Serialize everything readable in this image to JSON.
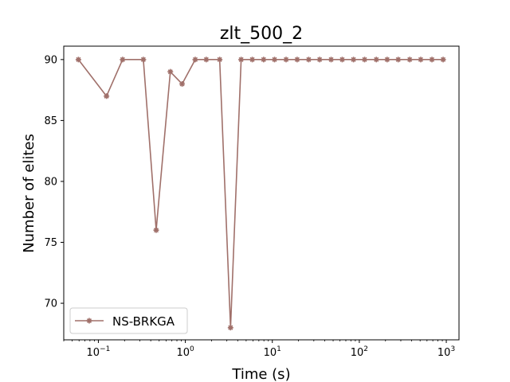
{
  "chart_data": {
    "type": "line",
    "title": "zlt_500_2",
    "xlabel": "Time (s)",
    "ylabel": "Number of elites",
    "xscale": "log",
    "xlim": [
      0.04,
      1400
    ],
    "ylim": [
      67,
      91.1
    ],
    "x_ticks": [
      0.1,
      1,
      10,
      100,
      1000
    ],
    "x_tick_labels": [
      {
        "base": "10",
        "exp": "−1"
      },
      {
        "base": "10",
        "exp": "0"
      },
      {
        "base": "10",
        "exp": "1"
      },
      {
        "base": "10",
        "exp": "2"
      },
      {
        "base": "10",
        "exp": "3"
      }
    ],
    "y_ticks": [
      70,
      75,
      80,
      85,
      90
    ],
    "y_tick_labels": [
      "70",
      "75",
      "80",
      "85",
      "90"
    ],
    "grid": false,
    "legend_position": "lower-left",
    "series": [
      {
        "name": "NS-BRKGA",
        "color": "#a0706a",
        "marker": "asterisk",
        "x": [
          0.059,
          0.124,
          0.19,
          0.329,
          0.462,
          0.672,
          0.918,
          1.3,
          1.74,
          2.48,
          3.31,
          4.38,
          5.88,
          7.94,
          10.6,
          14.4,
          19.3,
          26.2,
          35.0,
          47.4,
          63.6,
          85.7,
          115,
          157,
          209,
          280,
          380,
          508,
          684,
          920
        ],
        "y": [
          90,
          87,
          90,
          90,
          76,
          89,
          88,
          90,
          90,
          90,
          68,
          90,
          90,
          90,
          90,
          90,
          90,
          90,
          90,
          90,
          90,
          90,
          90,
          90,
          90,
          90,
          90,
          90,
          90,
          90
        ]
      }
    ]
  }
}
